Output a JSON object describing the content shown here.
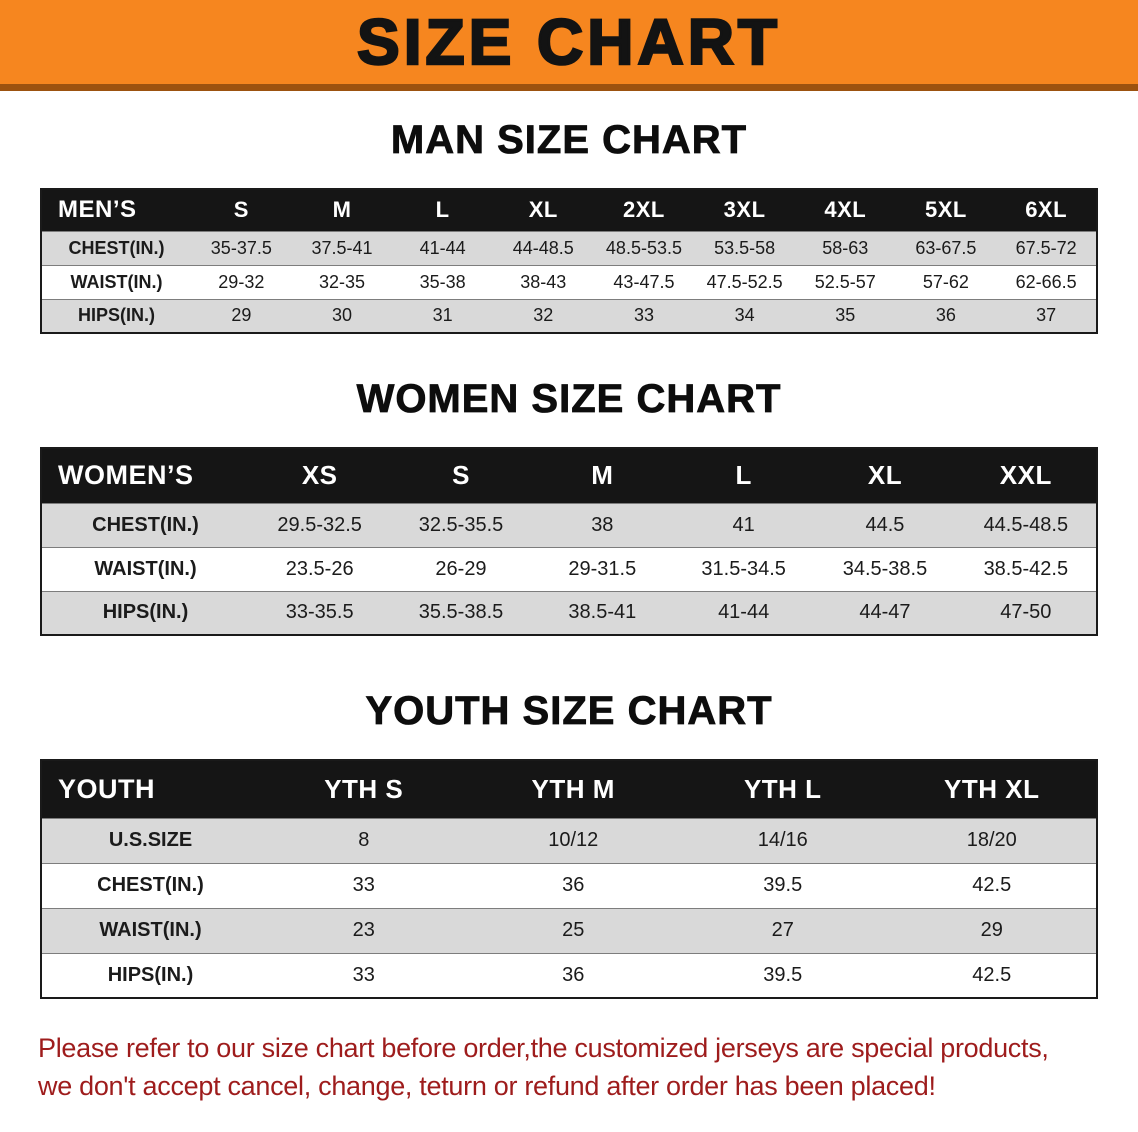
{
  "banner": {
    "title": "SIZE CHART"
  },
  "men": {
    "heading": "MAN SIZE CHART",
    "table": {
      "header": [
        "MEN’S",
        "S",
        "M",
        "L",
        "XL",
        "2XL",
        "3XL",
        "4XL",
        "5XL",
        "6XL"
      ],
      "rows": [
        {
          "label": "CHEST(IN.)",
          "values": [
            "35-37.5",
            "37.5-41",
            "41-44",
            "44-48.5",
            "48.5-53.5",
            "53.5-58",
            "58-63",
            "63-67.5",
            "67.5-72"
          ]
        },
        {
          "label": "WAIST(IN.)",
          "values": [
            "29-32",
            "32-35",
            "35-38",
            "38-43",
            "43-47.5",
            "47.5-52.5",
            "52.5-57",
            "57-62",
            "62-66.5"
          ]
        },
        {
          "label": "HIPS(IN.)",
          "values": [
            "29",
            "30",
            "31",
            "32",
            "33",
            "34",
            "35",
            "36",
            "37"
          ]
        }
      ]
    }
  },
  "women": {
    "heading": "WOMEN SIZE CHART",
    "table": {
      "header": [
        "WOMEN’S",
        "XS",
        "S",
        "M",
        "L",
        "XL",
        "XXL"
      ],
      "rows": [
        {
          "label": "CHEST(IN.)",
          "values": [
            "29.5-32.5",
            "32.5-35.5",
            "38",
            "41",
            "44.5",
            "44.5-48.5"
          ]
        },
        {
          "label": "WAIST(IN.)",
          "values": [
            "23.5-26",
            "26-29",
            "29-31.5",
            "31.5-34.5",
            "34.5-38.5",
            "38.5-42.5"
          ]
        },
        {
          "label": "HIPS(IN.)",
          "values": [
            "33-35.5",
            "35.5-38.5",
            "38.5-41",
            "41-44",
            "44-47",
            "47-50"
          ]
        }
      ]
    }
  },
  "youth": {
    "heading": "YOUTH SIZE CHART",
    "table": {
      "header": [
        "YOUTH",
        "YTH S",
        "YTH M",
        "YTH L",
        "YTH XL"
      ],
      "rows": [
        {
          "label": "U.S.SIZE",
          "values": [
            "8",
            "10/12",
            "14/16",
            "18/20"
          ]
        },
        {
          "label": "CHEST(IN.)",
          "values": [
            "33",
            "36",
            "39.5",
            "42.5"
          ]
        },
        {
          "label": "WAIST(IN.)",
          "values": [
            "23",
            "25",
            "27",
            "29"
          ]
        },
        {
          "label": "HIPS(IN.)",
          "values": [
            "33",
            "36",
            "39.5",
            "42.5"
          ]
        }
      ]
    }
  },
  "note": {
    "line1": "Please refer to our size chart before order,the customized jerseys are special products,",
    "line2": "we don't accept cancel, change, teturn or refund after order has been placed!"
  },
  "colors": {
    "banner_bg": "#f6861f",
    "banner_border": "#9c520f",
    "banner_text": "#131313",
    "table_header_bg": "#151515",
    "table_header_text": "#ffffff",
    "row_alt_bg": "#d9d9d9",
    "note_text": "#9e1c1c"
  }
}
